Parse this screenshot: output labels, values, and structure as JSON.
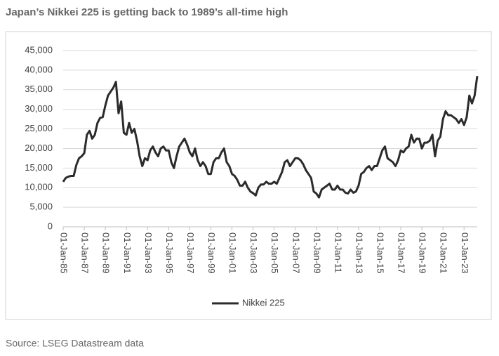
{
  "chart_data": {
    "type": "line",
    "title": "Japan’s Nikkei 225 is getting back to 1989’s all-time high",
    "source": "Source: LSEG Datastream data",
    "x": [
      "01-Jan-85",
      "01-Apr-85",
      "01-Jul-85",
      "01-Oct-85",
      "01-Jan-86",
      "01-Apr-86",
      "01-Jul-86",
      "01-Oct-86",
      "01-Jan-87",
      "01-Apr-87",
      "01-Jul-87",
      "01-Oct-87",
      "01-Jan-88",
      "01-Apr-88",
      "01-Jul-88",
      "01-Oct-88",
      "01-Jan-89",
      "01-Apr-89",
      "01-Jul-89",
      "01-Oct-89",
      "01-Jan-90",
      "01-Apr-90",
      "01-Jul-90",
      "01-Oct-90",
      "01-Jan-91",
      "01-Apr-91",
      "01-Jul-91",
      "01-Oct-91",
      "01-Jan-92",
      "01-Apr-92",
      "01-Jul-92",
      "01-Oct-92",
      "01-Jan-93",
      "01-Apr-93",
      "01-Jul-93",
      "01-Oct-93",
      "01-Jan-94",
      "01-Apr-94",
      "01-Jul-94",
      "01-Oct-94",
      "01-Jan-95",
      "01-Apr-95",
      "01-Jul-95",
      "01-Oct-95",
      "01-Jan-96",
      "01-Apr-96",
      "01-Jul-96",
      "01-Oct-96",
      "01-Jan-97",
      "01-Apr-97",
      "01-Jul-97",
      "01-Oct-97",
      "01-Jan-98",
      "01-Apr-98",
      "01-Jul-98",
      "01-Oct-98",
      "01-Jan-99",
      "01-Apr-99",
      "01-Jul-99",
      "01-Oct-99",
      "01-Jan-00",
      "01-Apr-00",
      "01-Jul-00",
      "01-Oct-00",
      "01-Jan-01",
      "01-Apr-01",
      "01-Jul-01",
      "01-Oct-01",
      "01-Jan-02",
      "01-Apr-02",
      "01-Jul-02",
      "01-Oct-02",
      "01-Jan-03",
      "01-Apr-03",
      "01-Jul-03",
      "01-Oct-03",
      "01-Jan-04",
      "01-Apr-04",
      "01-Jul-04",
      "01-Oct-04",
      "01-Jan-05",
      "01-Apr-05",
      "01-Jul-05",
      "01-Oct-05",
      "01-Jan-06",
      "01-Apr-06",
      "01-Jul-06",
      "01-Oct-06",
      "01-Jan-07",
      "01-Apr-07",
      "01-Jul-07",
      "01-Oct-07",
      "01-Jan-08",
      "01-Apr-08",
      "01-Jul-08",
      "01-Oct-08",
      "01-Jan-09",
      "01-Apr-09",
      "01-Jul-09",
      "01-Oct-09",
      "01-Jan-10",
      "01-Apr-10",
      "01-Jul-10",
      "01-Oct-10",
      "01-Jan-11",
      "01-Apr-11",
      "01-Jul-11",
      "01-Oct-11",
      "01-Jan-12",
      "01-Apr-12",
      "01-Jul-12",
      "01-Oct-12",
      "01-Jan-13",
      "01-Apr-13",
      "01-Jul-13",
      "01-Oct-13",
      "01-Jan-14",
      "01-Apr-14",
      "01-Jul-14",
      "01-Oct-14",
      "01-Jan-15",
      "01-Apr-15",
      "01-Jul-15",
      "01-Oct-15",
      "01-Jan-16",
      "01-Apr-16",
      "01-Jul-16",
      "01-Oct-16",
      "01-Jan-17",
      "01-Apr-17",
      "01-Jul-17",
      "01-Oct-17",
      "01-Jan-18",
      "01-Apr-18",
      "01-Jul-18",
      "01-Oct-18",
      "01-Jan-19",
      "01-Apr-19",
      "01-Jul-19",
      "01-Oct-19",
      "01-Jan-20",
      "01-Apr-20",
      "01-Jul-20",
      "01-Oct-20",
      "01-Jan-21",
      "01-Apr-21",
      "01-Jul-21",
      "01-Oct-21",
      "01-Jan-22",
      "01-Apr-22",
      "01-Jul-22",
      "01-Oct-22",
      "01-Jan-23",
      "01-Apr-23",
      "01-Jul-23",
      "01-Oct-23",
      "01-Jan-24",
      "01-Apr-24"
    ],
    "series": [
      {
        "name": "Nikkei 225",
        "color": "#2b2b2b",
        "values": [
          11500,
          12500,
          12800,
          13000,
          13000,
          15800,
          17500,
          18000,
          18800,
          23500,
          24500,
          22500,
          23500,
          26500,
          27800,
          28000,
          31000,
          33500,
          34500,
          35500,
          37000,
          29000,
          32000,
          24000,
          23500,
          26500,
          24000,
          25000,
          22000,
          18000,
          15500,
          17500,
          17000,
          19500,
          20500,
          19000,
          18000,
          20000,
          20500,
          19500,
          19500,
          16500,
          15000,
          18000,
          20500,
          21500,
          22500,
          21000,
          19000,
          18000,
          20000,
          17000,
          15500,
          16500,
          15500,
          13500,
          13500,
          16500,
          17500,
          17500,
          19000,
          20000,
          16500,
          15500,
          13500,
          13000,
          12000,
          10500,
          10500,
          11500,
          10000,
          9000,
          8600,
          8000,
          10000,
          10800,
          10800,
          11500,
          11000,
          11000,
          11500,
          11000,
          12500,
          14000,
          16500,
          17000,
          15500,
          16500,
          17500,
          17500,
          17000,
          16000,
          14500,
          13500,
          12500,
          9000,
          8500,
          7500,
          9500,
          10000,
          10500,
          11000,
          9500,
          9500,
          10500,
          9500,
          9500,
          8700,
          8500,
          9500,
          8700,
          9000,
          10500,
          13500,
          14000,
          15000,
          15500,
          14500,
          15500,
          15500,
          17500,
          19500,
          20500,
          17500,
          17000,
          16500,
          15500,
          17000,
          19500,
          19000,
          20000,
          20500,
          23500,
          21500,
          22500,
          22500,
          20000,
          21500,
          21500,
          22000,
          23500,
          18000,
          22000,
          23000,
          27500,
          29500,
          28500,
          28500,
          28000,
          27500,
          26500,
          27500,
          26000,
          28000,
          33500,
          31500,
          33500,
          38500
        ]
      }
    ],
    "xlim": [
      "01-Jan-85",
      "01-Apr-24"
    ],
    "xticks": [
      "01-Jan-85",
      "01-Jan-87",
      "01-Jan-89",
      "01-Jan-91",
      "01-Jan-93",
      "01-Jan-95",
      "01-Jan-97",
      "01-Jan-99",
      "01-Jan-01",
      "01-Jan-03",
      "01-Jan-05",
      "01-Jan-07",
      "01-Jan-09",
      "01-Jan-11",
      "01-Jan-13",
      "01-Jan-15",
      "01-Jan-17",
      "01-Jan-19",
      "01-Jan-21",
      "01-Jan-23"
    ],
    "ylim": [
      0,
      45000
    ],
    "yticks": [
      0,
      {
        "value": 5000,
        "label": "5,000"
      },
      {
        "value": 10000,
        "label": "10,000"
      },
      {
        "value": 15000,
        "label": "15,000"
      },
      {
        "value": 20000,
        "label": "20,000"
      },
      {
        "value": 25000,
        "label": "25,000"
      },
      {
        "value": 30000,
        "label": "30,000"
      },
      {
        "value": 35000,
        "label": "35,000"
      },
      {
        "value": 40000,
        "label": "40,000"
      },
      {
        "value": 45000,
        "label": "45,000"
      }
    ],
    "grid": true,
    "legend": "bottom"
  }
}
